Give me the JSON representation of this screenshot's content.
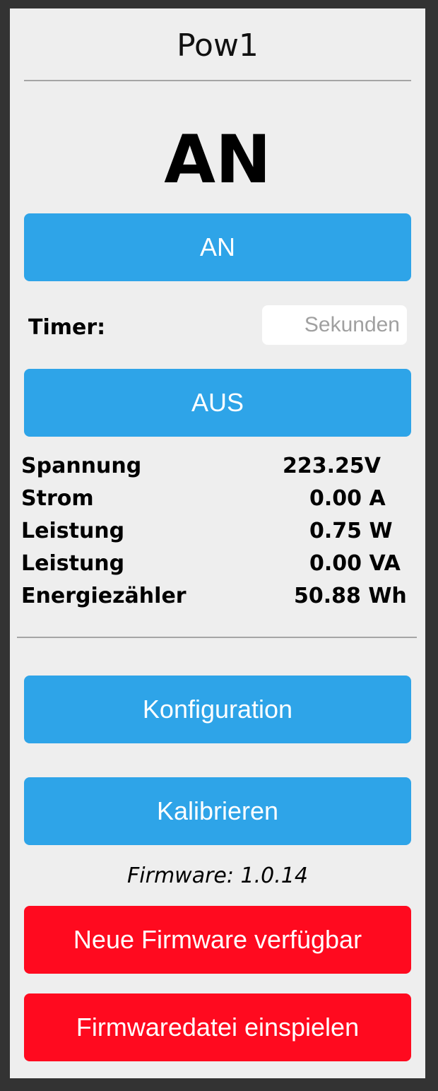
{
  "device": {
    "name": "Pow1"
  },
  "status": {
    "state": "AN"
  },
  "controls": {
    "on_label": "AN",
    "off_label": "AUS",
    "timer_label": "Timer:",
    "timer_placeholder": "Sekunden",
    "timer_value": ""
  },
  "readings": [
    {
      "label": "Spannung",
      "value": "223.25V"
    },
    {
      "label": "Strom",
      "value": "0.00 A"
    },
    {
      "label": "Leistung",
      "value": "0.75 W"
    },
    {
      "label": "Leistung",
      "value": "0.00 VA"
    },
    {
      "label": "Energiezähler",
      "value": "50.88 Wh"
    }
  ],
  "actions": {
    "config_label": "Konfiguration",
    "calibrate_label": "Kalibrieren"
  },
  "firmware": {
    "version_text": "Firmware: 1.0.14",
    "update_available_label": "Neue Firmware verfügbar",
    "upload_label": "Firmwaredatei einspielen"
  },
  "colors": {
    "button_blue": "#2ea4e8",
    "button_red": "#ff0a1f",
    "panel_background": "#eeeeee",
    "outer_background": "#333333"
  }
}
